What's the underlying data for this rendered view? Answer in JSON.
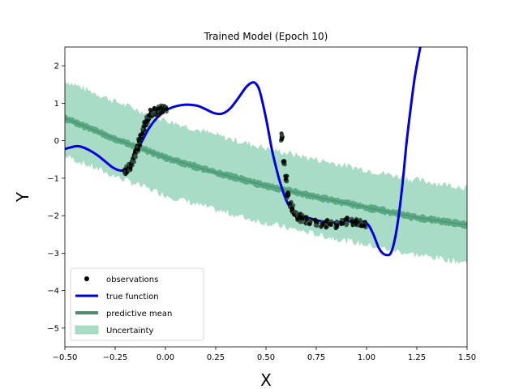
{
  "chart_data": {
    "type": "line",
    "title": "Trained Model (Epoch 10)",
    "xlabel": "X",
    "ylabel": "Y",
    "xlim": [
      -0.5,
      1.5
    ],
    "ylim": [
      -5.5,
      2.5
    ],
    "xticks": [
      -0.5,
      -0.25,
      0.0,
      0.25,
      0.5,
      0.75,
      1.0,
      1.25,
      1.5
    ],
    "xtick_labels": [
      "−0.50",
      "−0.25",
      "0.00",
      "0.25",
      "0.50",
      "0.75",
      "1.00",
      "1.25",
      "1.50"
    ],
    "yticks": [
      -5,
      -4,
      -3,
      -2,
      -1,
      0,
      1,
      2
    ],
    "ytick_labels": [
      "−5",
      "−4",
      "−3",
      "−2",
      "−1",
      "0",
      "1",
      "2"
    ],
    "grid": false,
    "legend_position": "lower-left",
    "colors": {
      "observations": "#000000",
      "true_function": "#0000e0",
      "predictive_mean": "#4f8c6c",
      "predictive_mean_band": "#5aab85",
      "uncertainty": "#a8dcc6"
    },
    "series": [
      {
        "name": "observations",
        "kind": "scatter",
        "x": [
          -0.2,
          -0.19,
          -0.18,
          -0.17,
          -0.16,
          -0.15,
          -0.14,
          -0.13,
          -0.12,
          -0.11,
          -0.1,
          -0.09,
          -0.08,
          -0.07,
          -0.06,
          -0.05,
          -0.04,
          -0.03,
          -0.02,
          -0.01,
          0.0,
          0.58,
          0.59,
          0.6,
          0.61,
          0.62,
          0.63,
          0.64,
          0.65,
          0.66,
          0.67,
          0.68,
          0.7,
          0.72,
          0.75,
          0.78,
          0.8,
          0.82,
          0.85,
          0.88,
          0.9,
          0.93,
          0.95,
          0.97,
          0.99
        ],
        "y": [
          -0.79,
          -0.76,
          -0.72,
          -0.62,
          -0.48,
          -0.33,
          -0.18,
          -0.02,
          0.12,
          0.28,
          0.43,
          0.55,
          0.65,
          0.74,
          0.77,
          0.78,
          0.8,
          0.82,
          0.84,
          0.86,
          0.89,
          0.1,
          -0.55,
          -1.05,
          -1.45,
          -1.68,
          -1.82,
          -1.92,
          -1.98,
          -2.03,
          -2.06,
          -2.08,
          -2.1,
          -2.12,
          -2.17,
          -2.2,
          -2.22,
          -2.23,
          -2.22,
          -2.18,
          -2.16,
          -2.15,
          -2.15,
          -2.17,
          -2.25
        ]
      },
      {
        "name": "true function",
        "kind": "line",
        "x": [
          -0.5,
          -0.45,
          -0.42,
          -0.38,
          -0.34,
          -0.3,
          -0.26,
          -0.22,
          -0.19,
          -0.16,
          -0.12,
          -0.08,
          -0.04,
          0.0,
          0.04,
          0.08,
          0.12,
          0.16,
          0.2,
          0.24,
          0.28,
          0.32,
          0.36,
          0.4,
          0.43,
          0.45,
          0.47,
          0.5,
          0.53,
          0.56,
          0.58,
          0.6,
          0.62,
          0.64,
          0.66,
          0.7,
          0.75,
          0.8,
          0.85,
          0.9,
          0.95,
          1.0,
          1.03,
          1.06,
          1.08,
          1.1,
          1.12,
          1.14,
          1.16,
          1.18,
          1.2,
          1.22,
          1.24,
          1.26,
          1.28
        ],
        "y": [
          -0.22,
          -0.15,
          -0.16,
          -0.25,
          -0.38,
          -0.55,
          -0.72,
          -0.8,
          -0.72,
          -0.45,
          -0.05,
          0.35,
          0.62,
          0.8,
          0.9,
          0.95,
          0.96,
          0.93,
          0.84,
          0.74,
          0.72,
          0.85,
          1.12,
          1.42,
          1.55,
          1.52,
          1.3,
          0.6,
          -0.25,
          -0.92,
          -1.28,
          -1.58,
          -1.78,
          -1.9,
          -1.96,
          -2.04,
          -2.12,
          -2.17,
          -2.18,
          -2.15,
          -2.14,
          -2.2,
          -2.45,
          -2.85,
          -3.0,
          -3.05,
          -3.0,
          -2.65,
          -2.0,
          -1.1,
          0.0,
          0.9,
          1.7,
          2.3,
          2.8
        ]
      },
      {
        "name": "predictive mean",
        "kind": "line",
        "x": [
          -0.5,
          -0.25,
          0.0,
          0.25,
          0.5,
          0.75,
          1.0,
          1.25,
          1.5
        ],
        "y": [
          0.6,
          0.05,
          -0.45,
          -0.85,
          -1.2,
          -1.5,
          -1.78,
          -2.05,
          -2.25
        ]
      },
      {
        "name": "Uncertainty",
        "kind": "band",
        "x": [
          -0.5,
          -0.25,
          0.0,
          0.25,
          0.5,
          0.75,
          1.0,
          1.25,
          1.5
        ],
        "lower": [
          -0.4,
          -0.95,
          -1.45,
          -1.85,
          -2.2,
          -2.5,
          -2.78,
          -3.05,
          -3.25
        ],
        "upper": [
          1.6,
          1.05,
          0.55,
          0.15,
          -0.2,
          -0.5,
          -0.78,
          -1.05,
          -1.25
        ]
      }
    ],
    "legend": [
      {
        "label": "observations",
        "key": "observations"
      },
      {
        "label": "true function",
        "key": "true_function"
      },
      {
        "label": "predictive mean",
        "key": "predictive_mean"
      },
      {
        "label": "Uncertainty",
        "key": "uncertainty"
      }
    ]
  }
}
